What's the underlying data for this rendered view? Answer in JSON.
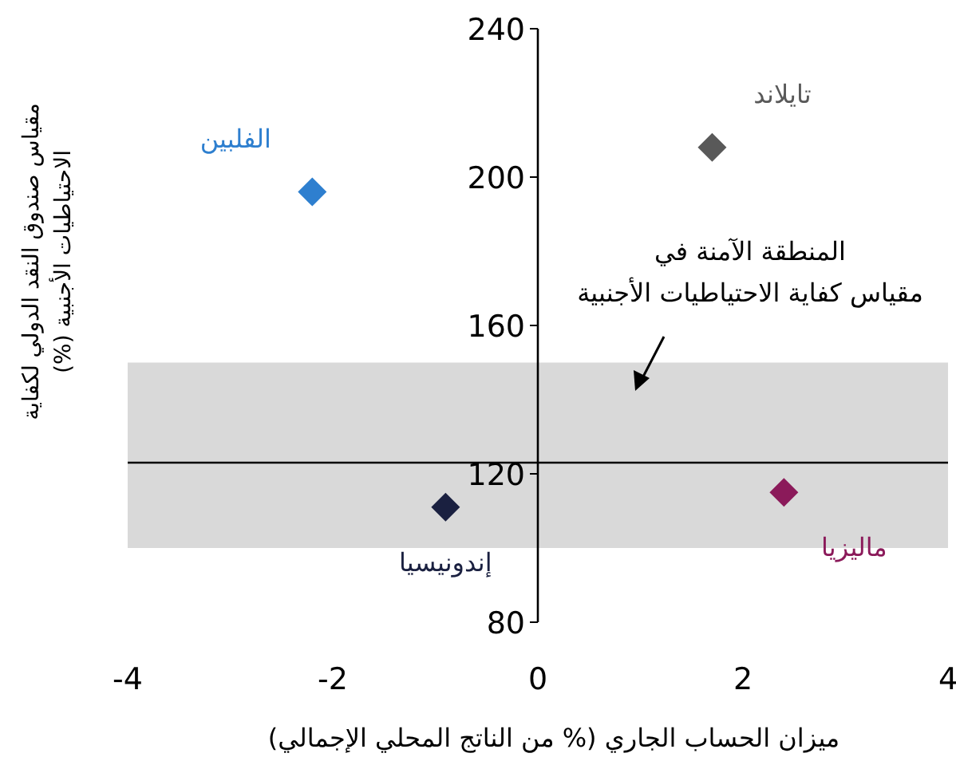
{
  "chart_data": {
    "type": "scatter",
    "xlabel": "ميزان الحساب الجاري (% من الناتج المحلي الإجمالي)",
    "ylabel": "مقياس صندوق النقد الدولي لكفاية الاحتياطيات الأجنبية (%)",
    "series": [
      {
        "name": "الفلبين",
        "color": "#2e7fcf",
        "x": [
          -2.2
        ],
        "values": [
          196
        ]
      },
      {
        "name": "تايلاند",
        "color": "#595959",
        "x": [
          1.7
        ],
        "values": [
          208
        ]
      },
      {
        "name": "إندونيسيا",
        "color": "#1a2040",
        "x": [
          -0.9
        ],
        "values": [
          111
        ]
      },
      {
        "name": "ماليزيا",
        "color": "#8b1a5a",
        "x": [
          2.4
        ],
        "values": [
          115
        ]
      }
    ],
    "xlim": [
      -4,
      4
    ],
    "xticks": [
      -4,
      -2,
      0,
      2,
      4
    ],
    "ylim": [
      80,
      240
    ],
    "yticks": [
      80,
      120,
      160,
      200,
      240
    ],
    "bands": [
      {
        "axis": "y",
        "from": 100,
        "to": 150,
        "color": "#d9d9d9"
      }
    ],
    "ref_lines": [
      {
        "axis": "y",
        "value": 123,
        "color": "#000000"
      }
    ],
    "annotations": [
      "المنطقة الآمنة في مقياس كفاية الاحتياطيات الأجنبية"
    ],
    "marker": "diamond",
    "grid": false
  }
}
